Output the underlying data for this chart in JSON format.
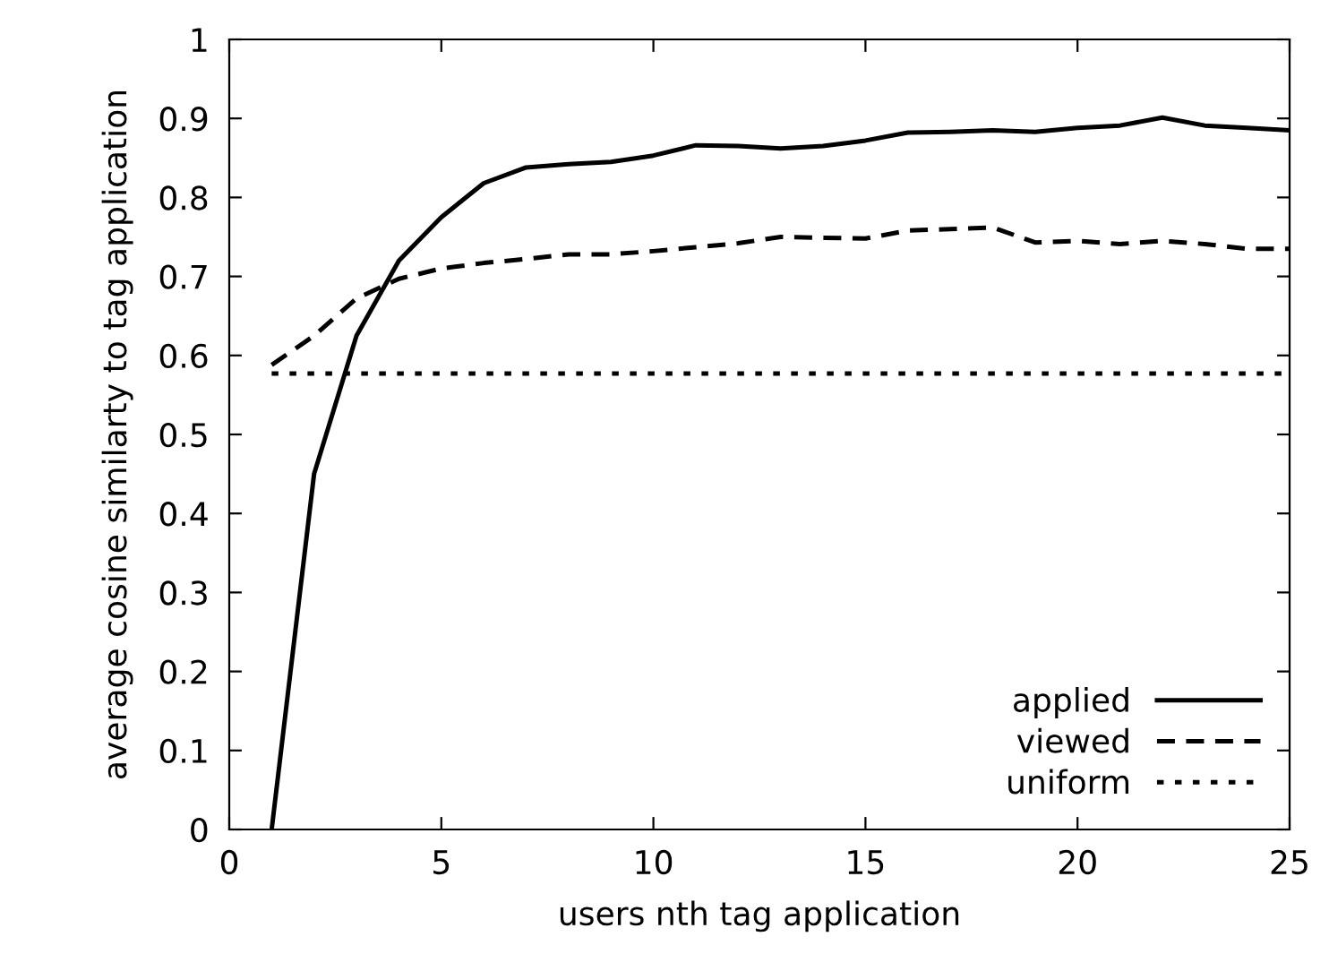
{
  "chart_data": {
    "type": "line",
    "xlabel": "users nth tag application",
    "ylabel": "average cosine similarty to tag application",
    "xlim": [
      0,
      25
    ],
    "xticks": [
      0,
      5,
      10,
      15,
      20,
      25
    ],
    "ylim": [
      0,
      1
    ],
    "yticks": [
      0,
      0.1,
      0.2,
      0.3,
      0.4,
      0.5,
      0.6,
      0.7,
      0.8,
      0.9,
      1
    ],
    "grid": false,
    "legend": "bottom right",
    "marker": "none",
    "series": [
      {
        "name": "applied",
        "color": "#000000",
        "line_style": "solid",
        "x": [
          1,
          2,
          3,
          4,
          5,
          6,
          7,
          8,
          9,
          10,
          11,
          12,
          13,
          14,
          15,
          16,
          17,
          18,
          19,
          20,
          21,
          22,
          23,
          24,
          25
        ],
        "values": [
          0,
          0.45,
          0.625,
          0.72,
          0.775,
          0.818,
          0.838,
          0.842,
          0.845,
          0.853,
          0.866,
          0.865,
          0.862,
          0.865,
          0.872,
          0.882,
          0.883,
          0.885,
          0.883,
          0.888,
          0.891,
          0.901,
          0.891,
          0.888,
          0.885
        ]
      },
      {
        "name": "viewed",
        "color": "#000000",
        "line_style": "dashed",
        "x": [
          1,
          2,
          3,
          4,
          5,
          6,
          7,
          8,
          9,
          10,
          11,
          12,
          13,
          14,
          15,
          16,
          17,
          18,
          19,
          20,
          21,
          22,
          23,
          24,
          25
        ],
        "values": [
          0.588,
          0.625,
          0.672,
          0.697,
          0.71,
          0.717,
          0.722,
          0.728,
          0.728,
          0.732,
          0.737,
          0.742,
          0.75,
          0.749,
          0.748,
          0.758,
          0.76,
          0.762,
          0.743,
          0.745,
          0.741,
          0.745,
          0.741,
          0.735,
          0.735
        ]
      },
      {
        "name": "uniform",
        "color": "#000000",
        "line_style": "dotted",
        "x": [
          1,
          25
        ],
        "values": [
          0.577,
          0.577
        ]
      }
    ]
  }
}
